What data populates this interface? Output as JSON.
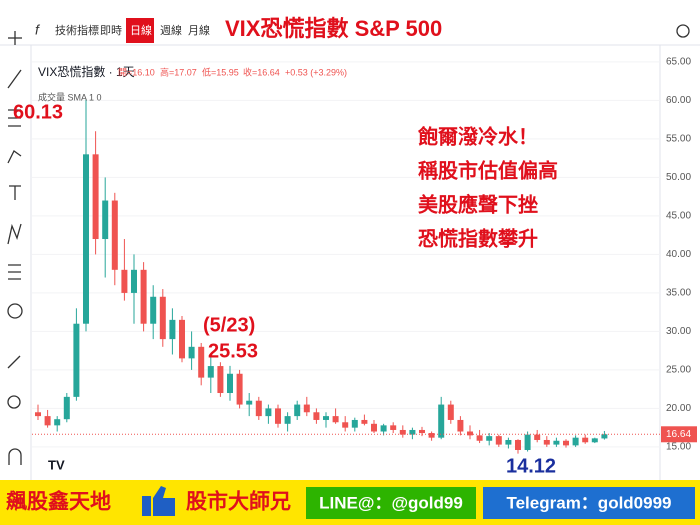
{
  "toolbar": {
    "items": [
      "技術指標",
      "即時",
      "日線",
      "週線",
      "月線"
    ],
    "active": 2
  },
  "banner": {
    "left": "飆股鑫天地",
    "middle": "股市大師兄",
    "line": "LINE@：@gold99",
    "telegram": "Telegram：gold0999"
  },
  "chart_data": {
    "type": "candlestick",
    "title": "VIX恐慌指數 S&P 500",
    "legend": {
      "symbol": "VIX恐慌指數 · 1天",
      "open": "開=16.10",
      "high": "高=17.07",
      "low": "低=15.95",
      "close": "收=16.64",
      "change": "+0.53 (+3.29%)",
      "volume": "成交量 SMA 1 0"
    },
    "open": [
      19.5,
      19.0,
      17.8,
      18.6,
      21.5,
      31.0,
      53.0,
      42.0,
      47.0,
      38.0,
      35.0,
      38.0,
      31.0,
      34.5,
      29.0,
      31.5,
      26.5,
      28.0,
      24.0,
      25.5,
      22.0,
      24.5,
      20.5,
      21.0,
      19.0,
      20.0,
      18.0,
      19.0,
      20.5,
      19.5,
      18.5,
      19.0,
      18.2,
      17.5,
      18.5,
      18.0,
      17.0,
      17.8,
      17.2,
      16.6,
      17.2,
      16.8,
      16.2,
      20.5,
      18.5,
      17.0,
      16.5,
      15.8,
      16.4,
      15.3,
      15.9,
      14.6,
      16.6,
      15.9,
      15.3,
      15.8,
      15.2,
      16.2,
      15.6,
      16.1
    ],
    "high": [
      20.5,
      19.8,
      19.0,
      22.0,
      33.0,
      60.13,
      56.0,
      50.0,
      48.0,
      42.0,
      40.0,
      39.0,
      36.0,
      35.5,
      33.0,
      32.0,
      30.0,
      28.5,
      27.0,
      26.0,
      25.53,
      25.0,
      22.0,
      21.5,
      20.5,
      20.5,
      19.5,
      21.0,
      21.5,
      20.0,
      19.5,
      20.0,
      19.0,
      18.8,
      19.2,
      18.5,
      18.0,
      18.2,
      17.8,
      17.5,
      17.6,
      17.0,
      21.5,
      21.0,
      19.0,
      17.8,
      17.2,
      16.8,
      16.6,
      16.2,
      16.0,
      17.0,
      17.2,
      16.4,
      16.2,
      16.0,
      16.5,
      16.6,
      16.2,
      17.07
    ],
    "low": [
      18.5,
      17.5,
      17.0,
      18.2,
      21.0,
      30.0,
      40.0,
      37.0,
      36.0,
      34.0,
      31.0,
      30.0,
      29.0,
      28.0,
      27.0,
      26.0,
      25.0,
      23.0,
      22.0,
      21.5,
      21.0,
      20.0,
      19.0,
      18.5,
      18.0,
      17.5,
      17.0,
      18.5,
      19.0,
      18.0,
      17.5,
      18.0,
      17.0,
      17.0,
      17.8,
      16.8,
      16.5,
      16.8,
      16.2,
      16.0,
      16.4,
      15.8,
      16.0,
      18.0,
      16.5,
      16.0,
      15.5,
      15.2,
      15.0,
      14.8,
      14.12,
      14.4,
      15.6,
      15.0,
      15.0,
      14.9,
      15.0,
      15.4,
      15.5,
      15.95
    ],
    "close": [
      19.0,
      17.8,
      18.6,
      21.5,
      31.0,
      53.0,
      42.0,
      47.0,
      38.0,
      35.0,
      38.0,
      31.0,
      34.5,
      29.0,
      31.5,
      26.5,
      28.0,
      24.0,
      25.5,
      22.0,
      24.5,
      20.5,
      21.0,
      19.0,
      20.0,
      18.0,
      19.0,
      20.5,
      19.5,
      18.5,
      19.0,
      18.2,
      17.5,
      18.5,
      18.0,
      17.0,
      17.8,
      17.2,
      16.6,
      17.2,
      16.8,
      16.2,
      20.5,
      18.5,
      17.0,
      16.5,
      15.8,
      16.4,
      15.3,
      15.9,
      14.6,
      16.6,
      15.9,
      15.3,
      15.8,
      15.2,
      16.2,
      15.6,
      16.11,
      16.64
    ],
    "up_color": "#26a69a",
    "down_color": "#ef5350",
    "ylim": [
      13.3,
      65.9
    ],
    "yticks": [
      {
        "value": 65,
        "label": "65.00"
      },
      {
        "value": 60,
        "label": "60.00"
      },
      {
        "value": 55,
        "label": "55.00"
      },
      {
        "value": 50,
        "label": "50.00"
      },
      {
        "value": 45,
        "label": "45.00"
      },
      {
        "value": 40,
        "label": "40.00"
      },
      {
        "value": 35,
        "label": "35.00"
      },
      {
        "value": 30,
        "label": "30.00"
      },
      {
        "value": 25,
        "label": "25.00"
      },
      {
        "value": 20,
        "label": "20.00"
      },
      {
        "value": 15,
        "label": "15.00"
      }
    ],
    "grid": true,
    "annotations": {
      "peak_date": "(5/23)",
      "commentary": [
        "飽爾潑冷水！",
        "稱股市估值偏高",
        "美股應聲下挫",
        "恐慌指數攀升"
      ]
    }
  }
}
